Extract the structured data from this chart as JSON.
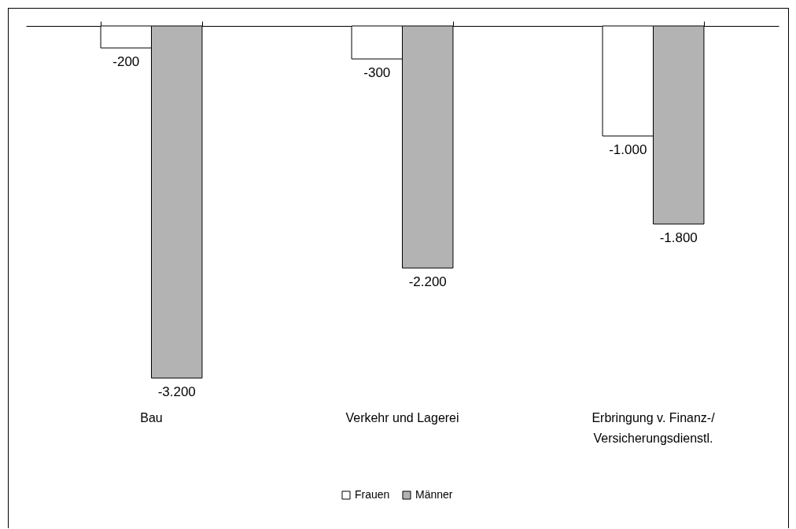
{
  "chart_data": {
    "type": "bar",
    "categories": [
      "Bau",
      "Verkehr und Lagerei",
      "Erbringung v. Finanz-/ Versicherungsdienstl."
    ],
    "series": [
      {
        "name": "Frauen",
        "color": "#ffffff",
        "values": [
          -200,
          -300,
          -1000
        ],
        "value_labels": [
          "-200",
          "-300",
          "-1.000"
        ]
      },
      {
        "name": "Männer",
        "color": "#b3b3b3",
        "values": [
          -3200,
          -2200,
          -1800
        ],
        "value_labels": [
          "-3.200",
          "-2.200",
          "-1.800"
        ]
      }
    ],
    "legend": "bottom",
    "tick_labels": "x"
  }
}
